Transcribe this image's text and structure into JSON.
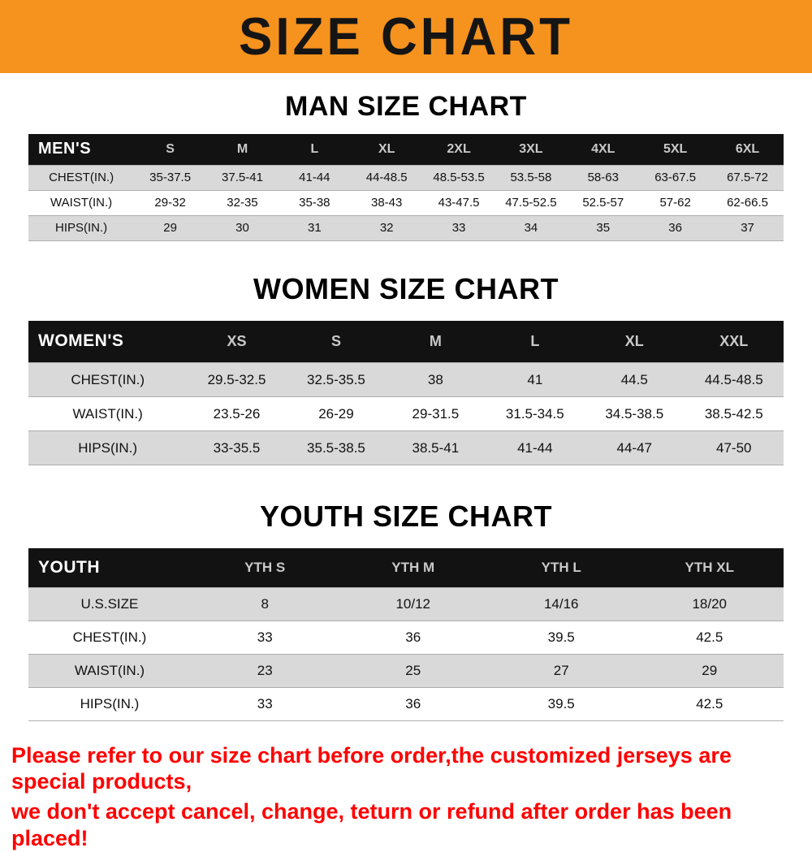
{
  "banner": {
    "title": "SIZE CHART"
  },
  "colors": {
    "banner_bg": "#F6921E",
    "table_header_bg": "#121212",
    "shaded_row_bg": "#D9D9D9",
    "note_text": "#FF0000"
  },
  "sections": [
    {
      "id": "men",
      "heading": "MAN SIZE CHART",
      "table": {
        "title": "MEN'S",
        "columns": [
          "S",
          "M",
          "L",
          "XL",
          "2XL",
          "3XL",
          "4XL",
          "5XL",
          "6XL"
        ],
        "rows": [
          {
            "label": "CHEST(IN.)",
            "values": [
              "35-37.5",
              "37.5-41",
              "41-44",
              "44-48.5",
              "48.5-53.5",
              "53.5-58",
              "58-63",
              "63-67.5",
              "67.5-72"
            ]
          },
          {
            "label": "WAIST(IN.)",
            "values": [
              "29-32",
              "32-35",
              "35-38",
              "38-43",
              "43-47.5",
              "47.5-52.5",
              "52.5-57",
              "57-62",
              "62-66.5"
            ]
          },
          {
            "label": "HIPS(IN.)",
            "values": [
              "29",
              "30",
              "31",
              "32",
              "33",
              "34",
              "35",
              "36",
              "37"
            ]
          }
        ]
      }
    },
    {
      "id": "women",
      "heading": "WOMEN SIZE CHART",
      "table": {
        "title": "WOMEN'S",
        "columns": [
          "XS",
          "S",
          "M",
          "L",
          "XL",
          "XXL"
        ],
        "rows": [
          {
            "label": "CHEST(IN.)",
            "values": [
              "29.5-32.5",
              "32.5-35.5",
              "38",
              "41",
              "44.5",
              "44.5-48.5"
            ]
          },
          {
            "label": "WAIST(IN.)",
            "values": [
              "23.5-26",
              "26-29",
              "29-31.5",
              "31.5-34.5",
              "34.5-38.5",
              "38.5-42.5"
            ]
          },
          {
            "label": "HIPS(IN.)",
            "values": [
              "33-35.5",
              "35.5-38.5",
              "38.5-41",
              "41-44",
              "44-47",
              "47-50"
            ]
          }
        ]
      }
    },
    {
      "id": "youth",
      "heading": "YOUTH SIZE CHART",
      "table": {
        "title": "YOUTH",
        "columns": [
          "YTH S",
          "YTH M",
          "YTH L",
          "YTH XL"
        ],
        "rows": [
          {
            "label": "U.S.SIZE",
            "values": [
              "8",
              "10/12",
              "14/16",
              "18/20"
            ]
          },
          {
            "label": "CHEST(IN.)",
            "values": [
              "33",
              "36",
              "39.5",
              "42.5"
            ]
          },
          {
            "label": "WAIST(IN.)",
            "values": [
              "23",
              "25",
              "27",
              "29"
            ]
          },
          {
            "label": "HIPS(IN.)",
            "values": [
              "33",
              "36",
              "39.5",
              "42.5"
            ]
          }
        ]
      }
    }
  ],
  "footer": {
    "lines": [
      "Please refer to our size chart before order,the customized jerseys are special products,",
      "we don't accept cancel, change, teturn or refund after order has been placed!"
    ]
  }
}
